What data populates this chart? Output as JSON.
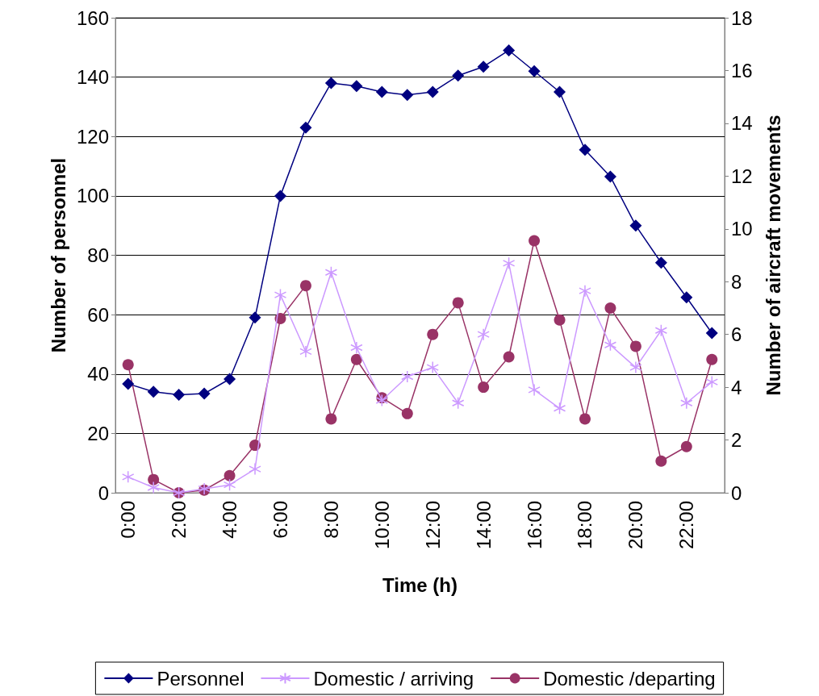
{
  "chart_data": {
    "type": "line",
    "xlabel": "Time (h)",
    "ylabel": "Number of personnel",
    "y2label": "Number of aircraft movements",
    "categories": [
      "0:00",
      null,
      "2:00",
      null,
      "4:00",
      null,
      "6:00",
      null,
      "8:00",
      null,
      "10:00",
      null,
      "12:00",
      null,
      "14:00",
      null,
      "16:00",
      null,
      "18:00",
      null,
      "20:00",
      null,
      "22:00",
      null
    ],
    "ylim": [
      0,
      160
    ],
    "yticks": [
      0,
      20,
      40,
      60,
      80,
      100,
      120,
      140,
      160
    ],
    "y2lim": [
      0,
      18
    ],
    "y2ticks": [
      0,
      2,
      4,
      6,
      8,
      10,
      12,
      14,
      16,
      18
    ],
    "grid": "y",
    "legend": "bottom",
    "series": [
      {
        "name": "Personnel",
        "color": "#000080",
        "marker": "diamond",
        "values": [
          36.7,
          34,
          33,
          33.4,
          38.3,
          59,
          100,
          123,
          138,
          137,
          135,
          134,
          135,
          140.5,
          143.5,
          149,
          142,
          135,
          115.5,
          106.5,
          90,
          77.5,
          65.8,
          53.8
        ]
      },
      {
        "name": "Domestic / arriving",
        "color": "#cc99ff",
        "marker": "cross",
        "axis": "y2",
        "values": [
          0.6,
          0.2,
          0,
          0.15,
          0.3,
          0.9,
          7.5,
          5.35,
          8.35,
          5.5,
          3.5,
          4.4,
          4.75,
          3.4,
          6,
          8.7,
          3.9,
          3.2,
          7.65,
          5.6,
          4.75,
          6.15,
          3.4,
          4.2
        ]
      },
      {
        "name": "Domestic /departing",
        "color": "#993366",
        "marker": "circle",
        "axis": "y2",
        "values": [
          4.85,
          0.5,
          0,
          0.1,
          0.65,
          1.8,
          6.6,
          7.85,
          2.8,
          5.05,
          3.6,
          3,
          6,
          7.2,
          4,
          5.15,
          9.55,
          6.55,
          2.8,
          7,
          5.55,
          1.2,
          1.75,
          5.05
        ]
      }
    ]
  }
}
